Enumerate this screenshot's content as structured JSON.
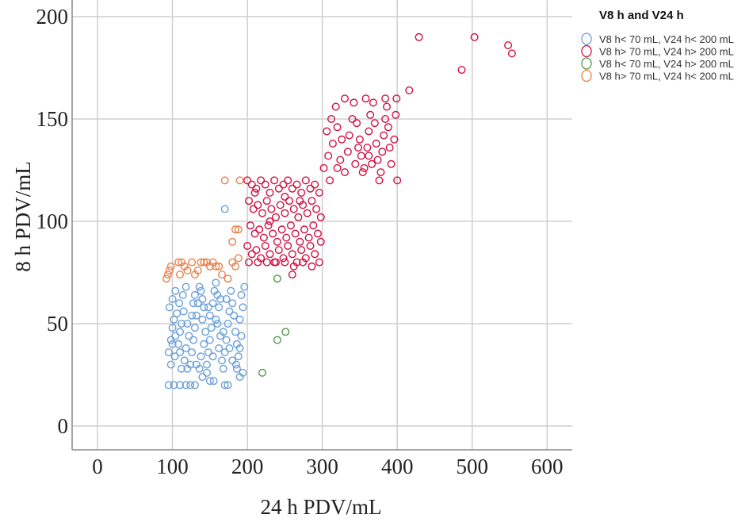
{
  "chart_data": {
    "type": "scatter",
    "title": "",
    "xlabel": "24 h PDV/mL",
    "ylabel": "8 h PDV/mL",
    "xlim": [
      -35,
      635
    ],
    "ylim": [
      -11,
      210
    ],
    "xticks": [
      0,
      100,
      200,
      300,
      400,
      500,
      600
    ],
    "yticks": [
      0,
      50,
      100,
      150,
      200
    ],
    "grid": true,
    "legend": {
      "title": "V8 h and V24 h",
      "placement": "top-right-outside"
    },
    "series": [
      {
        "name": "V8 h< 70 mL, V24 h< 200 mL",
        "color": "#6a9fd8",
        "points": [
          [
            95,
            20
          ],
          [
            102,
            20
          ],
          [
            110,
            20
          ],
          [
            118,
            20
          ],
          [
            124,
            20
          ],
          [
            130,
            20
          ],
          [
            150,
            22
          ],
          [
            155,
            22
          ],
          [
            170,
            20
          ],
          [
            174,
            20
          ],
          [
            95,
            36
          ],
          [
            98,
            42
          ],
          [
            100,
            48
          ],
          [
            102,
            52
          ],
          [
            96,
            58
          ],
          [
            100,
            62
          ],
          [
            104,
            66
          ],
          [
            98,
            30
          ],
          [
            103,
            34
          ],
          [
            108,
            40
          ],
          [
            110,
            46
          ],
          [
            112,
            50
          ],
          [
            106,
            55
          ],
          [
            109,
            60
          ],
          [
            114,
            64
          ],
          [
            118,
            68
          ],
          [
            115,
            56
          ],
          [
            120,
            50
          ],
          [
            122,
            44
          ],
          [
            118,
            38
          ],
          [
            116,
            32
          ],
          [
            120,
            28
          ],
          [
            124,
            30
          ],
          [
            126,
            36
          ],
          [
            128,
            42
          ],
          [
            130,
            48
          ],
          [
            132,
            54
          ],
          [
            134,
            60
          ],
          [
            130,
            64
          ],
          [
            136,
            68
          ],
          [
            138,
            66
          ],
          [
            140,
            62
          ],
          [
            142,
            58
          ],
          [
            140,
            52
          ],
          [
            144,
            46
          ],
          [
            142,
            40
          ],
          [
            138,
            34
          ],
          [
            136,
            28
          ],
          [
            140,
            24
          ],
          [
            146,
            30
          ],
          [
            148,
            36
          ],
          [
            150,
            42
          ],
          [
            152,
            48
          ],
          [
            150,
            54
          ],
          [
            154,
            60
          ],
          [
            156,
            66
          ],
          [
            158,
            70
          ],
          [
            160,
            64
          ],
          [
            162,
            58
          ],
          [
            160,
            50
          ],
          [
            164,
            44
          ],
          [
            162,
            38
          ],
          [
            166,
            32
          ],
          [
            168,
            28
          ],
          [
            170,
            36
          ],
          [
            172,
            42
          ],
          [
            174,
            50
          ],
          [
            176,
            56
          ],
          [
            172,
            62
          ],
          [
            178,
            66
          ],
          [
            180,
            60
          ],
          [
            182,
            54
          ],
          [
            184,
            46
          ],
          [
            186,
            40
          ],
          [
            188,
            34
          ],
          [
            185,
            30
          ],
          [
            190,
            38
          ],
          [
            192,
            44
          ],
          [
            190,
            52
          ],
          [
            194,
            58
          ],
          [
            192,
            64
          ],
          [
            196,
            68
          ],
          [
            194,
            26
          ],
          [
            190,
            24
          ],
          [
            186,
            28
          ],
          [
            180,
            32
          ],
          [
            176,
            38
          ],
          [
            168,
            46
          ],
          [
            158,
            52
          ],
          [
            148,
            58
          ],
          [
            128,
            60
          ],
          [
            126,
            54
          ],
          [
            110,
            36
          ],
          [
            104,
            44
          ],
          [
            100,
            40
          ],
          [
            112,
            28
          ],
          [
            132,
            30
          ],
          [
            146,
            26
          ],
          [
            154,
            34
          ],
          [
            164,
            62
          ],
          [
            170,
            106
          ]
        ]
      },
      {
        "name": "V8 h> 70 mL, V24 h> 200 mL",
        "color": "#d0103f",
        "points": [
          [
            200,
            120
          ],
          [
            206,
            118
          ],
          [
            212,
            116
          ],
          [
            218,
            120
          ],
          [
            224,
            118
          ],
          [
            230,
            114
          ],
          [
            236,
            120
          ],
          [
            242,
            116
          ],
          [
            248,
            118
          ],
          [
            254,
            120
          ],
          [
            260,
            116
          ],
          [
            266,
            118
          ],
          [
            272,
            114
          ],
          [
            278,
            120
          ],
          [
            284,
            116
          ],
          [
            290,
            118
          ],
          [
            296,
            114
          ],
          [
            202,
            110
          ],
          [
            208,
            106
          ],
          [
            214,
            108
          ],
          [
            220,
            104
          ],
          [
            226,
            110
          ],
          [
            232,
            106
          ],
          [
            238,
            102
          ],
          [
            244,
            108
          ],
          [
            250,
            104
          ],
          [
            256,
            110
          ],
          [
            262,
            106
          ],
          [
            268,
            102
          ],
          [
            274,
            108
          ],
          [
            280,
            104
          ],
          [
            286,
            110
          ],
          [
            292,
            106
          ],
          [
            298,
            102
          ],
          [
            204,
            98
          ],
          [
            210,
            94
          ],
          [
            216,
            96
          ],
          [
            222,
            92
          ],
          [
            228,
            98
          ],
          [
            234,
            94
          ],
          [
            240,
            90
          ],
          [
            246,
            96
          ],
          [
            252,
            92
          ],
          [
            258,
            98
          ],
          [
            264,
            94
          ],
          [
            270,
            90
          ],
          [
            276,
            96
          ],
          [
            282,
            92
          ],
          [
            288,
            98
          ],
          [
            294,
            94
          ],
          [
            200,
            88
          ],
          [
            206,
            84
          ],
          [
            212,
            86
          ],
          [
            218,
            82
          ],
          [
            224,
            88
          ],
          [
            230,
            84
          ],
          [
            236,
            80
          ],
          [
            242,
            86
          ],
          [
            248,
            82
          ],
          [
            254,
            88
          ],
          [
            260,
            84
          ],
          [
            266,
            80
          ],
          [
            272,
            86
          ],
          [
            278,
            82
          ],
          [
            284,
            88
          ],
          [
            290,
            84
          ],
          [
            296,
            80
          ],
          [
            202,
            80
          ],
          [
            214,
            80
          ],
          [
            226,
            80
          ],
          [
            238,
            80
          ],
          [
            250,
            80
          ],
          [
            262,
            78
          ],
          [
            274,
            80
          ],
          [
            286,
            78
          ],
          [
            298,
            90
          ],
          [
            210,
            114
          ],
          [
            230,
            100
          ],
          [
            250,
            112
          ],
          [
            270,
            110
          ],
          [
            260,
            74
          ],
          [
            302,
            126
          ],
          [
            308,
            132
          ],
          [
            314,
            138
          ],
          [
            306,
            144
          ],
          [
            312,
            150
          ],
          [
            318,
            156
          ],
          [
            320,
            146
          ],
          [
            326,
            140
          ],
          [
            324,
            130
          ],
          [
            330,
            124
          ],
          [
            334,
            134
          ],
          [
            336,
            142
          ],
          [
            340,
            150
          ],
          [
            342,
            158
          ],
          [
            346,
            148
          ],
          [
            350,
            140
          ],
          [
            352,
            132
          ],
          [
            356,
            126
          ],
          [
            354,
            124
          ],
          [
            360,
            136
          ],
          [
            362,
            144
          ],
          [
            364,
            152
          ],
          [
            368,
            158
          ],
          [
            370,
            148
          ],
          [
            372,
            138
          ],
          [
            374,
            130
          ],
          [
            378,
            124
          ],
          [
            380,
            134
          ],
          [
            382,
            142
          ],
          [
            384,
            150
          ],
          [
            386,
            156
          ],
          [
            388,
            146
          ],
          [
            390,
            136
          ],
          [
            392,
            128
          ],
          [
            396,
            140
          ],
          [
            398,
            152
          ],
          [
            400,
            120
          ],
          [
            310,
            120
          ],
          [
            344,
            128
          ],
          [
            366,
            128
          ],
          [
            376,
            120
          ],
          [
            358,
            160
          ],
          [
            330,
            160
          ],
          [
            384,
            160
          ],
          [
            320,
            126
          ],
          [
            348,
            136
          ],
          [
            362,
            132
          ],
          [
            399,
            160
          ],
          [
            416,
            164
          ],
          [
            429,
            190
          ],
          [
            486,
            174
          ],
          [
            503,
            190
          ],
          [
            548,
            186
          ],
          [
            553,
            182
          ]
        ]
      },
      {
        "name": "V8 h< 70 mL, V24 h> 200 mL",
        "color": "#4a9a4a",
        "points": [
          [
            240,
            72
          ],
          [
            251,
            46
          ],
          [
            240,
            42
          ],
          [
            220,
            26
          ]
        ]
      },
      {
        "name": "V8 h> 70 mL, V24 h< 200 mL",
        "color": "#e8804a",
        "points": [
          [
            92,
            72
          ],
          [
            94,
            74
          ],
          [
            96,
            76
          ],
          [
            98,
            78
          ],
          [
            108,
            80
          ],
          [
            112,
            80
          ],
          [
            116,
            78
          ],
          [
            120,
            76
          ],
          [
            126,
            80
          ],
          [
            130,
            74
          ],
          [
            138,
            80
          ],
          [
            142,
            80
          ],
          [
            146,
            80
          ],
          [
            150,
            78
          ],
          [
            154,
            80
          ],
          [
            158,
            78
          ],
          [
            162,
            78
          ],
          [
            166,
            74
          ],
          [
            174,
            72
          ],
          [
            180,
            80
          ],
          [
            184,
            78
          ],
          [
            188,
            82
          ],
          [
            180,
            90
          ],
          [
            184,
            96
          ],
          [
            188,
            96
          ],
          [
            170,
            120
          ],
          [
            190,
            120
          ],
          [
            110,
            74
          ],
          [
            134,
            76
          ]
        ]
      }
    ]
  }
}
